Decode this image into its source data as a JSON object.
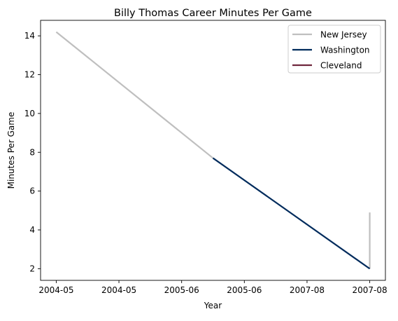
{
  "chart_data": {
    "type": "line",
    "title": "Billy Thomas  Career Minutes Per Game",
    "xlabel": "Year",
    "ylabel": "Minutes Per Game",
    "x_tick_labels": [
      "2004-05",
      "2004-05",
      "2005-06",
      "2005-06",
      "2007-08",
      "2007-08"
    ],
    "x_positions": [
      0,
      1,
      2,
      3,
      4,
      5
    ],
    "xlim": [
      -0.25,
      5.25
    ],
    "yticks": [
      2,
      4,
      6,
      8,
      10,
      12,
      14
    ],
    "ylim": [
      1.4,
      14.8
    ],
    "grid": false,
    "legend_placement": "top-right",
    "series": [
      {
        "name": "New Jersey",
        "color": "#bfbfbf",
        "segments": [
          [
            {
              "x": 0,
              "y": 14.2
            },
            {
              "x": 2.5,
              "y": 7.7
            }
          ],
          [
            {
              "x": 5,
              "y": 2.0
            },
            {
              "x": 5,
              "y": 4.9
            }
          ]
        ]
      },
      {
        "name": "Washington",
        "color": "#002b5c",
        "segments": [
          [
            {
              "x": 2.5,
              "y": 7.7
            },
            {
              "x": 5,
              "y": 2.0
            }
          ]
        ]
      },
      {
        "name": "Cleveland",
        "color": "#6f263d",
        "segments": []
      }
    ]
  }
}
